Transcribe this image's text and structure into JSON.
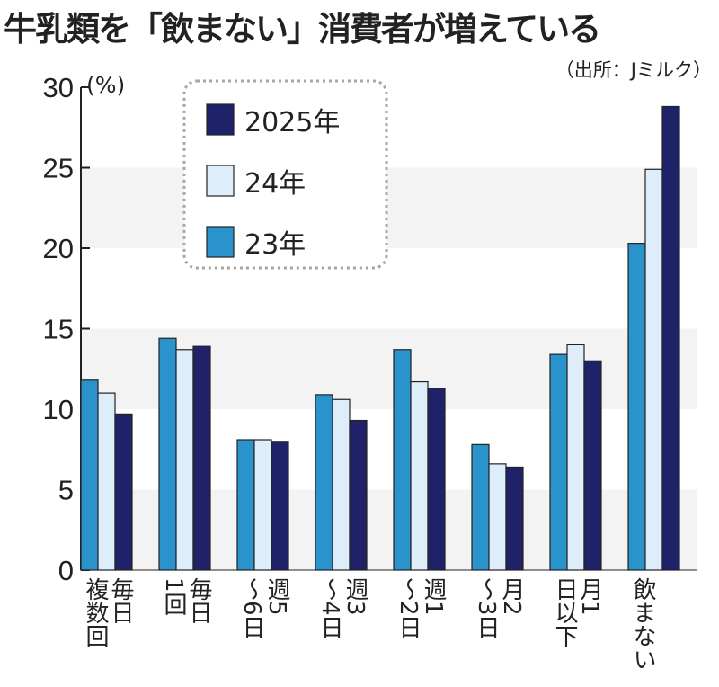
{
  "chart_data": {
    "type": "bar",
    "title": "牛乳類を「飲まない」消費者が増えている",
    "source": "（出所：Jミルク）",
    "ylabel": "(%)",
    "ylim": [
      0,
      30
    ],
    "yticks": [
      0,
      5,
      10,
      15,
      20,
      25,
      30
    ],
    "categories": [
      "毎日複数回",
      "毎日1回",
      "週5～6日",
      "週3～4日",
      "週1～2日",
      "月2～3日",
      "月1日以下",
      "飲まない"
    ],
    "category_labels": [
      "毎日\n複数回",
      "毎日\n1回",
      "週5\n～6日",
      "週3\n～4日",
      "週1\n～2日",
      "月2\n～3日",
      "月1\n日以下",
      "飲まない"
    ],
    "series": [
      {
        "name": "23年",
        "color": "#2a93cc",
        "values": [
          11.8,
          14.4,
          8.1,
          10.9,
          13.7,
          7.8,
          13.4,
          20.3
        ]
      },
      {
        "name": "24年",
        "color": "#ddeefa",
        "values": [
          11.0,
          13.7,
          8.1,
          10.6,
          11.7,
          6.6,
          14.0,
          24.9
        ]
      },
      {
        "name": "2025年",
        "color": "#1f2268",
        "values": [
          9.7,
          13.9,
          8.0,
          9.3,
          11.3,
          6.4,
          13.0,
          28.8
        ]
      }
    ],
    "legend_order": [
      2,
      1,
      0
    ],
    "legend_position": "top-left",
    "grid": "alternating horizontal bands"
  }
}
